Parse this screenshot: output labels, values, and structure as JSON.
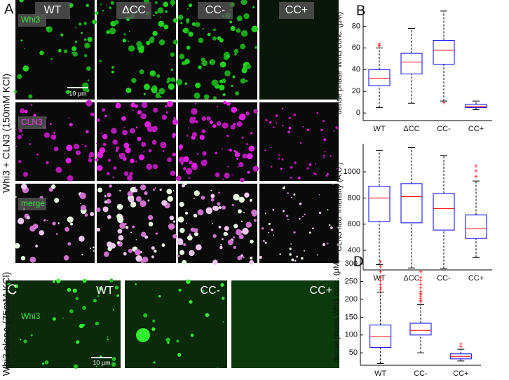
{
  "panel_a": {
    "letter": "A",
    "side_label": "Whi3 + CLN3 (150mM KCl)",
    "columns": [
      "WT",
      "ΔCC",
      "CC-",
      "CC+"
    ],
    "rows": [
      "Whi3",
      "CLN3",
      "merge"
    ],
    "scale_bar": "10 μm"
  },
  "panel_c": {
    "letter": "C",
    "side_label": "Whi3 alone (75mM KCl)",
    "columns": [
      "WT",
      "CC-",
      "CC+"
    ],
    "channel": "Whi3",
    "scale_bar": "10 μm"
  },
  "chart_data": [
    {
      "type": "box",
      "label": "B",
      "ylabel": "dense phase Whi3 conc. (μM)",
      "categories": [
        "WT",
        "ΔCC",
        "CC-",
        "CC+"
      ],
      "boxes": [
        {
          "low": 5,
          "q1": 25,
          "median": 32,
          "q3": 40,
          "high": 60,
          "outliers": [
            61,
            62,
            63
          ]
        },
        {
          "low": 9,
          "q1": 36,
          "median": 47,
          "q3": 55,
          "high": 78,
          "outliers": []
        },
        {
          "low": 11,
          "q1": 45,
          "median": 58,
          "q3": 67,
          "high": 94,
          "outliers": [
            9
          ]
        },
        {
          "low": 3,
          "q1": 5,
          "median": 6,
          "q3": 8,
          "high": 11,
          "outliers": []
        }
      ],
      "ylim": [
        -7,
        99
      ],
      "yticks": [
        0,
        20,
        40,
        60,
        80
      ]
    },
    {
      "type": "box",
      "ylabel": "CLN3 fluo. intensity (A.U.)",
      "categories": [
        "WT",
        "ΔCC",
        "CC-",
        "CC+"
      ],
      "boxes": [
        {
          "low": 290,
          "q1": 620,
          "median": 800,
          "q3": 890,
          "high": 1165,
          "outliers": []
        },
        {
          "low": 265,
          "q1": 610,
          "median": 810,
          "q3": 910,
          "high": 1185,
          "outliers": []
        },
        {
          "low": 260,
          "q1": 555,
          "median": 720,
          "q3": 835,
          "high": 1125,
          "outliers": []
        },
        {
          "low": 345,
          "q1": 490,
          "median": 565,
          "q3": 670,
          "high": 930,
          "outliers": [
            960,
            1000,
            1040
          ]
        }
      ],
      "ylim": [
        250,
        1215
      ],
      "yticks": [
        400,
        600,
        800,
        1000
      ]
    },
    {
      "type": "box",
      "label": "D",
      "ylabel": "dense phase Whi3 conc. (μM)",
      "categories": [
        "WT",
        "CC-",
        "CC+"
      ],
      "boxes": [
        {
          "low": 20,
          "q1": 65,
          "median": 95,
          "q3": 128,
          "high": 220,
          "outliers": [
            225,
            230,
            240,
            250,
            260,
            275,
            290,
            305
          ]
        },
        {
          "low": 50,
          "q1": 100,
          "median": 113,
          "q3": 133,
          "high": 185,
          "outliers": [
            190,
            195,
            200,
            205,
            210,
            215,
            220,
            230,
            240,
            250,
            260,
            275
          ]
        },
        {
          "low": 27,
          "q1": 33,
          "median": 40,
          "q3": 47,
          "high": 60,
          "outliers": [
            65,
            72
          ]
        }
      ],
      "ylim": [
        15,
        320
      ],
      "yticks": [
        50,
        100,
        150,
        200,
        250,
        300
      ]
    }
  ]
}
